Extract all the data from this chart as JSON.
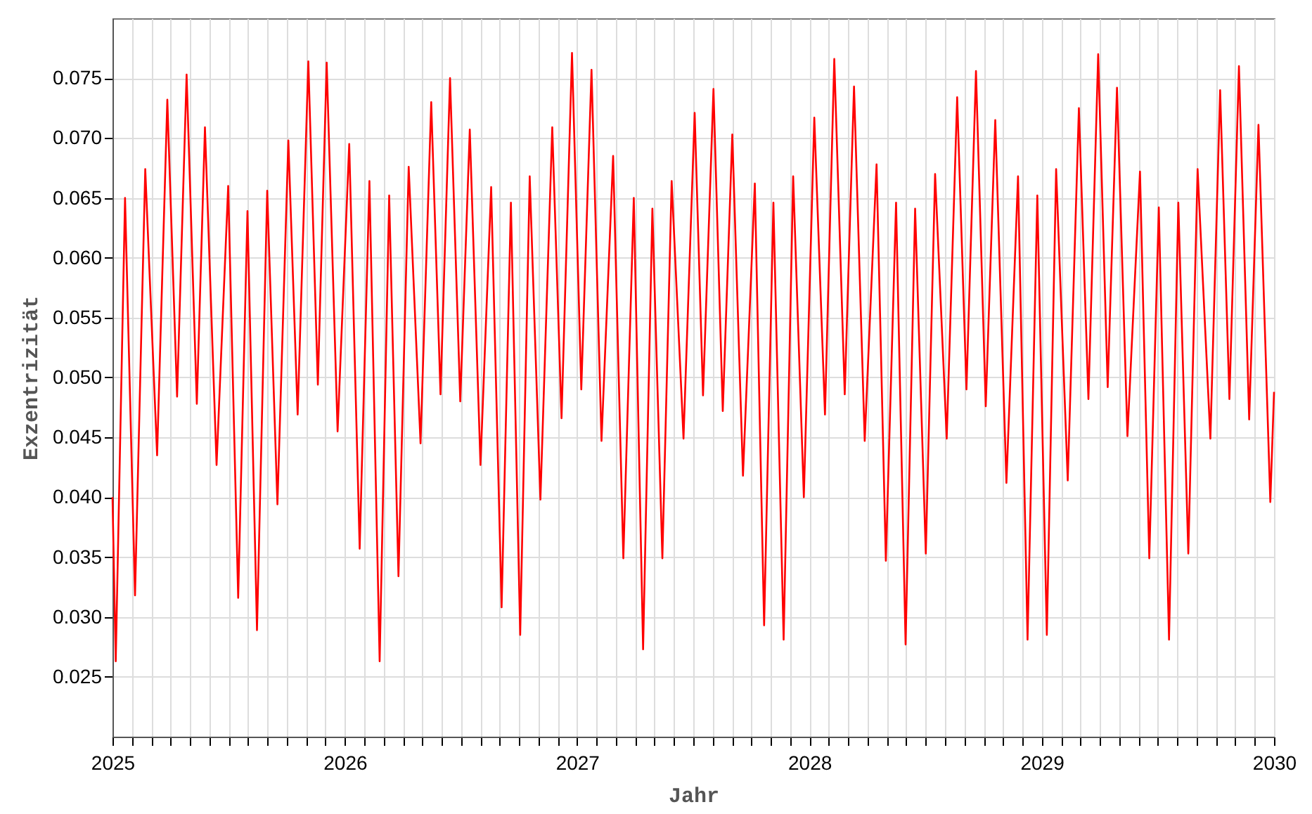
{
  "chart_data": {
    "type": "line",
    "xlabel": "Jahr",
    "ylabel": "Exzentrizität",
    "grid": true,
    "marker": "none",
    "line_style": "solid",
    "xlim": [
      2025,
      2030
    ],
    "ylim": [
      0.02,
      0.08
    ],
    "xticks": [
      {
        "value": 2025,
        "label": "2025"
      },
      {
        "value": 2025.0833,
        "label": null
      },
      {
        "value": 2025.1667,
        "label": null
      },
      {
        "value": 2025.25,
        "label": null
      },
      {
        "value": 2025.3333,
        "label": null
      },
      {
        "value": 2025.4167,
        "label": null
      },
      {
        "value": 2025.5,
        "label": null
      },
      {
        "value": 2025.5833,
        "label": null
      },
      {
        "value": 2025.6667,
        "label": null
      },
      {
        "value": 2025.75,
        "label": null
      },
      {
        "value": 2025.8333,
        "label": null
      },
      {
        "value": 2025.9167,
        "label": null
      },
      {
        "value": 2026,
        "label": "2026"
      },
      {
        "value": 2026.0833,
        "label": null
      },
      {
        "value": 2026.1667,
        "label": null
      },
      {
        "value": 2026.25,
        "label": null
      },
      {
        "value": 2026.3333,
        "label": null
      },
      {
        "value": 2026.4167,
        "label": null
      },
      {
        "value": 2026.5,
        "label": null
      },
      {
        "value": 2026.5833,
        "label": null
      },
      {
        "value": 2026.6667,
        "label": null
      },
      {
        "value": 2026.75,
        "label": null
      },
      {
        "value": 2026.8333,
        "label": null
      },
      {
        "value": 2026.9167,
        "label": null
      },
      {
        "value": 2027,
        "label": "2027"
      },
      {
        "value": 2027.0833,
        "label": null
      },
      {
        "value": 2027.1667,
        "label": null
      },
      {
        "value": 2027.25,
        "label": null
      },
      {
        "value": 2027.3333,
        "label": null
      },
      {
        "value": 2027.4167,
        "label": null
      },
      {
        "value": 2027.5,
        "label": null
      },
      {
        "value": 2027.5833,
        "label": null
      },
      {
        "value": 2027.6667,
        "label": null
      },
      {
        "value": 2027.75,
        "label": null
      },
      {
        "value": 2027.8333,
        "label": null
      },
      {
        "value": 2027.9167,
        "label": null
      },
      {
        "value": 2028,
        "label": "2028"
      },
      {
        "value": 2028.0833,
        "label": null
      },
      {
        "value": 2028.1667,
        "label": null
      },
      {
        "value": 2028.25,
        "label": null
      },
      {
        "value": 2028.3333,
        "label": null
      },
      {
        "value": 2028.4167,
        "label": null
      },
      {
        "value": 2028.5,
        "label": null
      },
      {
        "value": 2028.5833,
        "label": null
      },
      {
        "value": 2028.6667,
        "label": null
      },
      {
        "value": 2028.75,
        "label": null
      },
      {
        "value": 2028.8333,
        "label": null
      },
      {
        "value": 2028.9167,
        "label": null
      },
      {
        "value": 2029,
        "label": "2029"
      },
      {
        "value": 2029.0833,
        "label": null
      },
      {
        "value": 2029.1667,
        "label": null
      },
      {
        "value": 2029.25,
        "label": null
      },
      {
        "value": 2029.3333,
        "label": null
      },
      {
        "value": 2029.4167,
        "label": null
      },
      {
        "value": 2029.5,
        "label": null
      },
      {
        "value": 2029.5833,
        "label": null
      },
      {
        "value": 2029.6667,
        "label": null
      },
      {
        "value": 2029.75,
        "label": null
      },
      {
        "value": 2029.8333,
        "label": null
      },
      {
        "value": 2029.9167,
        "label": null
      },
      {
        "value": 2030,
        "label": "2030"
      }
    ],
    "yticks": [
      {
        "value": 0.025,
        "label": "0.025"
      },
      {
        "value": 0.03,
        "label": "0.030"
      },
      {
        "value": 0.035,
        "label": "0.035"
      },
      {
        "value": 0.04,
        "label": "0.040"
      },
      {
        "value": 0.045,
        "label": "0.045"
      },
      {
        "value": 0.05,
        "label": "0.050"
      },
      {
        "value": 0.055,
        "label": "0.055"
      },
      {
        "value": 0.06,
        "label": "0.060"
      },
      {
        "value": 0.065,
        "label": "0.065"
      },
      {
        "value": 0.07,
        "label": "0.070"
      },
      {
        "value": 0.075,
        "label": "0.075"
      }
    ],
    "series": [
      {
        "color": "#ff0000",
        "x": [
          2025.0,
          2025.014,
          2025.054,
          2025.097,
          2025.141,
          2025.192,
          2025.236,
          2025.278,
          2025.319,
          2025.363,
          2025.398,
          2025.448,
          2025.498,
          2025.541,
          2025.581,
          2025.622,
          2025.666,
          2025.71,
          2025.757,
          2025.797,
          2025.843,
          2025.884,
          2025.922,
          2025.969,
          2026.019,
          2026.064,
          2026.106,
          2026.15,
          2026.191,
          2026.231,
          2026.275,
          2026.326,
          2026.372,
          2026.412,
          2026.453,
          2026.497,
          2026.538,
          2026.584,
          2026.63,
          2026.675,
          2026.715,
          2026.755,
          2026.796,
          2026.842,
          2026.893,
          2026.933,
          2026.978,
          2027.018,
          2027.062,
          2027.105,
          2027.155,
          2027.199,
          2027.244,
          2027.284,
          2027.324,
          2027.367,
          2027.407,
          2027.458,
          2027.506,
          2027.542,
          2027.587,
          2027.627,
          2027.668,
          2027.714,
          2027.765,
          2027.805,
          2027.845,
          2027.889,
          2027.93,
          2027.976,
          2028.021,
          2028.067,
          2028.107,
          2028.152,
          2028.192,
          2028.238,
          2028.289,
          2028.329,
          2028.373,
          2028.414,
          2028.455,
          2028.501,
          2028.541,
          2028.591,
          2028.636,
          2028.676,
          2028.717,
          2028.759,
          2028.8,
          2028.848,
          2028.898,
          2028.939,
          2028.981,
          2029.022,
          2029.062,
          2029.112,
          2029.16,
          2029.201,
          2029.243,
          2029.284,
          2029.324,
          2029.369,
          2029.423,
          2029.463,
          2029.504,
          2029.548,
          2029.588,
          2029.631,
          2029.671,
          2029.726,
          2029.768,
          2029.808,
          2029.849,
          2029.893,
          2029.933,
          2029.984,
          2030.0
        ],
        "values": [
          0.04,
          0.0263,
          0.065,
          0.0318,
          0.0674,
          0.0435,
          0.0732,
          0.0484,
          0.0753,
          0.0478,
          0.0709,
          0.0427,
          0.066,
          0.0316,
          0.0639,
          0.0289,
          0.0656,
          0.0394,
          0.0698,
          0.0469,
          0.0764,
          0.0494,
          0.0763,
          0.0455,
          0.0695,
          0.0357,
          0.0664,
          0.0263,
          0.0652,
          0.0334,
          0.0676,
          0.0445,
          0.073,
          0.0486,
          0.075,
          0.048,
          0.0707,
          0.0427,
          0.0659,
          0.0308,
          0.0646,
          0.0285,
          0.0668,
          0.0398,
          0.0709,
          0.0466,
          0.0771,
          0.049,
          0.0757,
          0.0447,
          0.0685,
          0.0349,
          0.065,
          0.0273,
          0.0641,
          0.0349,
          0.0664,
          0.0449,
          0.0721,
          0.0485,
          0.0741,
          0.0472,
          0.0703,
          0.0418,
          0.0662,
          0.0293,
          0.0646,
          0.0281,
          0.0668,
          0.04,
          0.0717,
          0.0469,
          0.0766,
          0.0486,
          0.0743,
          0.0447,
          0.0678,
          0.0347,
          0.0646,
          0.0277,
          0.0641,
          0.0353,
          0.067,
          0.0449,
          0.0734,
          0.049,
          0.0756,
          0.0476,
          0.0715,
          0.0412,
          0.0668,
          0.0281,
          0.0652,
          0.0285,
          0.0674,
          0.0414,
          0.0725,
          0.0482,
          0.077,
          0.0492,
          0.0742,
          0.0451,
          0.0672,
          0.0349,
          0.0642,
          0.0281,
          0.0646,
          0.0353,
          0.0674,
          0.0449,
          0.074,
          0.0482,
          0.076,
          0.0465,
          0.0711,
          0.0396,
          0.0488
        ]
      }
    ]
  }
}
